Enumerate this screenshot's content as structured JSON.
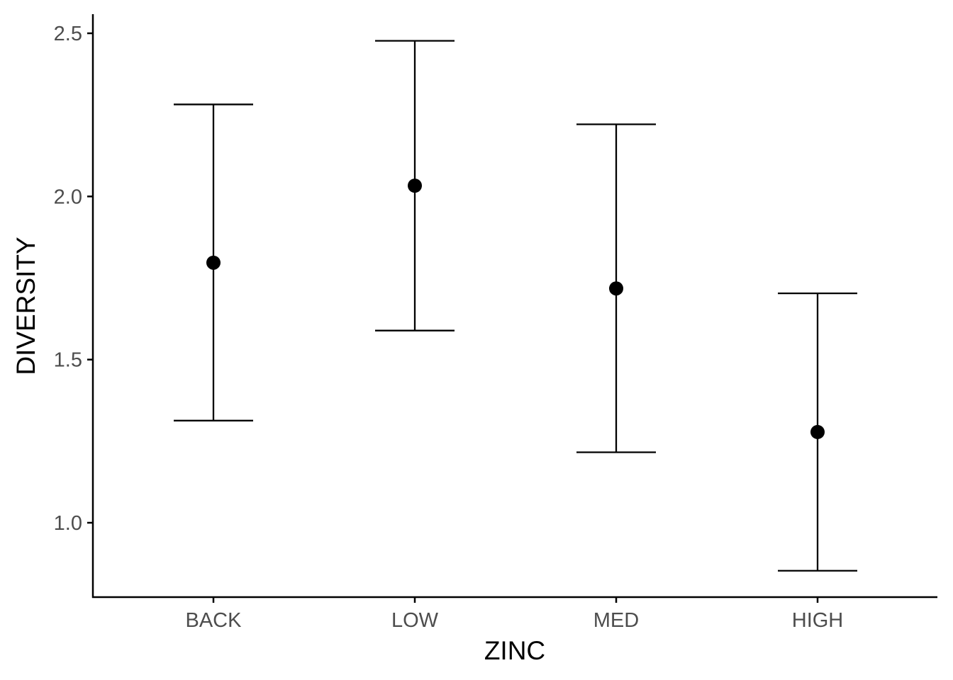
{
  "chart_data": {
    "type": "scatter",
    "subtype": "point-with-errorbars",
    "title": "",
    "xlabel": "ZINC",
    "ylabel": "DIVERSITY",
    "categories": [
      "BACK",
      "LOW",
      "MED",
      "HIGH"
    ],
    "series": [
      {
        "values": [
          1.797,
          2.033,
          1.718,
          1.278
        ],
        "lower": [
          1.313,
          1.589,
          1.216,
          0.853
        ],
        "upper": [
          2.282,
          2.477,
          2.221,
          1.703
        ]
      }
    ],
    "ylim": [
      0.77,
      2.56
    ],
    "yticks": [
      1.0,
      1.5,
      2.0,
      2.5
    ],
    "ytick_labels": [
      "1.0",
      "1.5",
      "2.0",
      "2.5"
    ],
    "grid": false,
    "legend": "none",
    "colors": {
      "points": "#000000",
      "errorbars": "#000000",
      "axis": "#000000",
      "tick_labels": "#4d4d4d"
    }
  }
}
